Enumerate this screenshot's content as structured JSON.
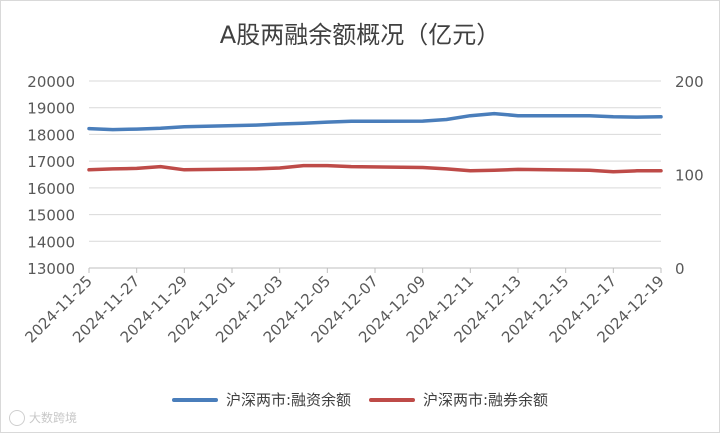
{
  "chart_data": {
    "type": "line",
    "title": "A股两融余额概况（亿元）",
    "x": [
      "2024-11-25",
      "2024-11-26",
      "2024-11-27",
      "2024-11-28",
      "2024-11-29",
      "2024-12-02",
      "2024-12-03",
      "2024-12-04",
      "2024-12-05",
      "2024-12-06",
      "2024-12-09",
      "2024-12-10",
      "2024-12-11",
      "2024-12-12",
      "2024-12-13",
      "2024-12-16",
      "2024-12-17",
      "2024-12-18",
      "2024-12-19"
    ],
    "xticks": [
      "2024-11-25",
      "2024-11-27",
      "2024-11-29",
      "2024-12-01",
      "2024-12-03",
      "2024-12-05",
      "2024-12-07",
      "2024-12-09",
      "2024-12-11",
      "2024-12-13",
      "2024-12-15",
      "2024-12-17",
      "2024-12-19"
    ],
    "y_left": {
      "ylim": [
        13000,
        20000
      ],
      "ticks": [
        "13000",
        "14000",
        "15000",
        "16000",
        "17000",
        "18000",
        "19000",
        "20000"
      ]
    },
    "y_right": {
      "ylim": [
        0,
        200
      ],
      "ticks": [
        "0",
        "100",
        "200"
      ]
    },
    "series": [
      {
        "name": "沪深两市:融资余额",
        "axis": "left",
        "color": "#4a7ebb",
        "values": [
          18220,
          18180,
          18200,
          18230,
          18290,
          18350,
          18390,
          18420,
          18460,
          18490,
          18500,
          18560,
          18700,
          18780,
          18700,
          18700,
          18660,
          18650,
          18660
        ]
      },
      {
        "name": "沪深两市:融券余额",
        "axis": "right",
        "color": "#be4b48",
        "values": [
          105,
          106,
          106.5,
          108.5,
          105,
          106,
          107,
          109.5,
          109.5,
          108.5,
          107.5,
          106,
          104,
          104.5,
          105.5,
          104.5,
          103,
          104,
          104
        ]
      }
    ],
    "legend_position": "bottom",
    "grid": "horizontal"
  },
  "watermark": {
    "text": "大数跨境"
  }
}
